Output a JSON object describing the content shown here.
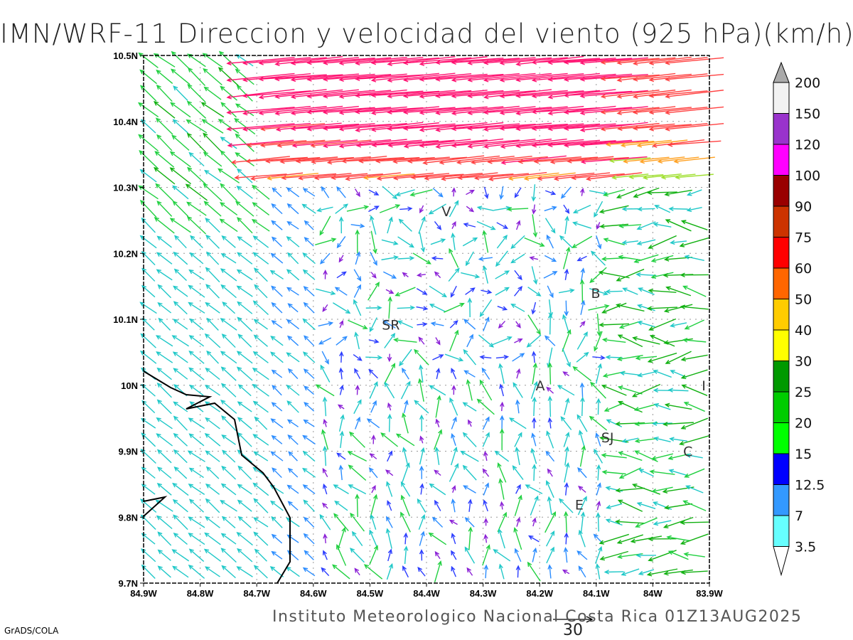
{
  "title": "IMN/WRF-11 Direccion y velocidad del viento (925 hPa)(km/h)",
  "footer": "Instituto Meteorologico Nacional Costa Rica 01Z13AUG2025",
  "credit": "GrADS/COLA",
  "reference_vector": {
    "value": 30,
    "label": "30"
  },
  "map": {
    "lon_range": [
      -84.9,
      -83.9
    ],
    "lat_range": [
      9.7,
      10.5
    ],
    "x_ticks": [
      "84.9W",
      "84.8W",
      "84.7W",
      "84.6W",
      "84.5W",
      "84.4W",
      "84.3W",
      "84.2W",
      "84.1W",
      "84W",
      "83.9W"
    ],
    "y_ticks": [
      "10.5N",
      "10.4N",
      "10.3N",
      "10.2N",
      "10.1N",
      "10N",
      "9.9N",
      "9.8N",
      "9.7N"
    ],
    "places": [
      {
        "label": "V",
        "lon": -84.365,
        "lat": 10.264
      },
      {
        "label": "SR",
        "lon": -84.463,
        "lat": 10.092
      },
      {
        "label": "B",
        "lon": -84.101,
        "lat": 10.14
      },
      {
        "label": "A",
        "lon": -84.199,
        "lat": 10.0
      },
      {
        "label": "I",
        "lon": -83.91,
        "lat": 10.0
      },
      {
        "label": "SJ",
        "lon": -84.08,
        "lat": 9.921
      },
      {
        "label": "C",
        "lon": -83.938,
        "lat": 9.9
      },
      {
        "label": "E",
        "lon": -84.13,
        "lat": 9.819
      }
    ]
  },
  "colorbar": {
    "labels": [
      "200",
      "150",
      "120",
      "100",
      "90",
      "75",
      "60",
      "50",
      "40",
      "30",
      "25",
      "20",
      "15",
      "12.5",
      "7",
      "3.5"
    ],
    "colors": [
      "#f2f2f2",
      "#9933cc",
      "#ff00ff",
      "#990000",
      "#cc3300",
      "#ff0000",
      "#ff6600",
      "#ffcc00",
      "#ffff00",
      "#009900",
      "#00cc00",
      "#00ff00",
      "#0000ff",
      "#3399ff",
      "#66ffff"
    ],
    "over_color": "#aaaaaa",
    "under_color": "#ffffff"
  }
}
